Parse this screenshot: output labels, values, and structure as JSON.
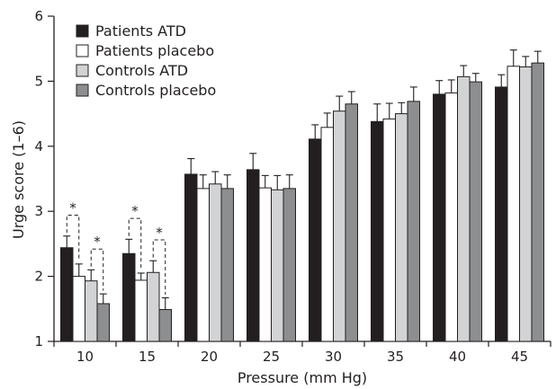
{
  "chart_data": {
    "type": "bar",
    "xlabel": "Pressure (mm Hg)",
    "ylabel": "Urge score (1–6)",
    "ylim": [
      1,
      6
    ],
    "yticks": [
      1,
      2,
      3,
      4,
      5,
      6
    ],
    "categories": [
      "10",
      "15",
      "20",
      "25",
      "30",
      "35",
      "40",
      "45"
    ],
    "legend_position": "top-left",
    "series": [
      {
        "name": "Patients ATD",
        "color": "#231f20",
        "values": [
          2.44,
          2.35,
          3.57,
          3.64,
          4.11,
          4.38,
          4.8,
          4.91
        ],
        "errors": [
          0.18,
          0.22,
          0.24,
          0.25,
          0.22,
          0.27,
          0.21,
          0.19
        ]
      },
      {
        "name": "Patients placebo",
        "color": "#ffffff",
        "values": [
          2.0,
          1.94,
          3.35,
          3.36,
          4.29,
          4.42,
          4.82,
          5.23
        ],
        "errors": [
          0.19,
          0.11,
          0.21,
          0.19,
          0.22,
          0.24,
          0.2,
          0.25
        ]
      },
      {
        "name": "Controls ATD",
        "color": "#d2d3d5",
        "values": [
          1.93,
          2.06,
          3.42,
          3.33,
          4.54,
          4.5,
          5.07,
          5.22
        ],
        "errors": [
          0.17,
          0.18,
          0.19,
          0.22,
          0.23,
          0.17,
          0.17,
          0.16
        ]
      },
      {
        "name": "Controls placebo",
        "color": "#8d8e90",
        "values": [
          1.58,
          1.49,
          3.35,
          3.35,
          4.65,
          4.69,
          4.99,
          5.28
        ],
        "errors": [
          0.15,
          0.18,
          0.21,
          0.21,
          0.19,
          0.22,
          0.13,
          0.18
        ]
      }
    ],
    "significance": [
      {
        "category_index": 0,
        "pair": [
          0,
          1
        ],
        "label": "*"
      },
      {
        "category_index": 0,
        "pair": [
          2,
          3
        ],
        "label": "*"
      },
      {
        "category_index": 1,
        "pair": [
          0,
          1
        ],
        "label": "*"
      },
      {
        "category_index": 1,
        "pair": [
          2,
          3
        ],
        "label": "*"
      }
    ]
  }
}
